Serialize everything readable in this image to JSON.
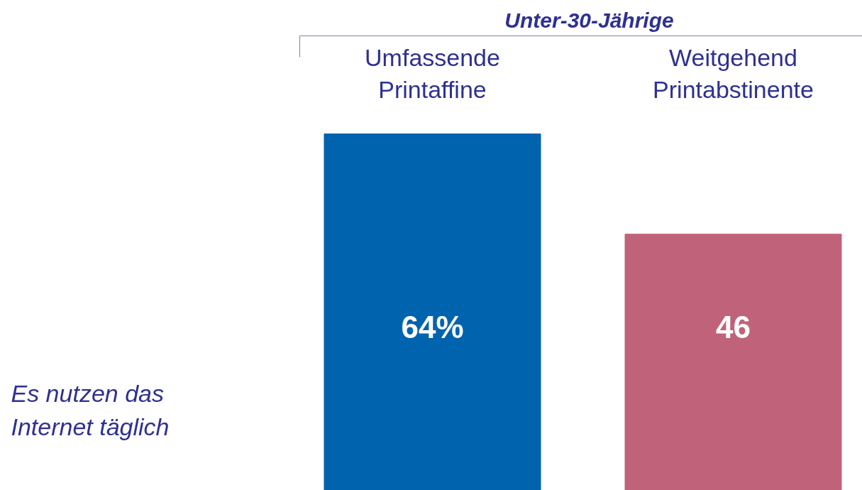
{
  "chart_data": {
    "type": "bar",
    "title": "Unter-30-Jährige",
    "ylabel": "Es nutzen das\nInternet täglich",
    "categories": [
      "Umfassende\nPrintaffine",
      "Weitgehend\nPrintabstinente"
    ],
    "values": [
      64,
      46
    ],
    "colors": [
      "#0063ae",
      "#c0637a"
    ],
    "value_labels": [
      "64%",
      "46"
    ]
  }
}
